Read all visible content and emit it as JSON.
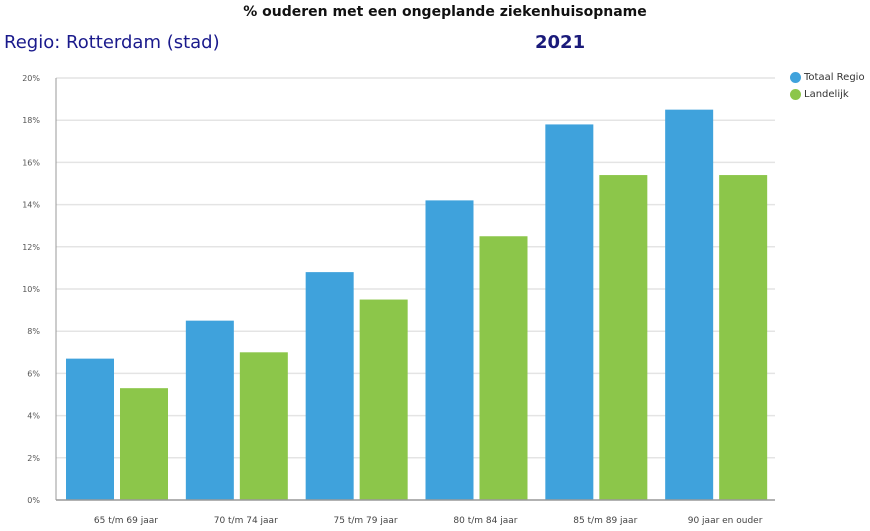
{
  "chart_data": {
    "type": "bar",
    "title": "% ouderen met een ongeplande ziekenhuisopname",
    "region_label": "Regio:  Rotterdam (stad)",
    "year": "2021",
    "categories": [
      "65 t/m 69 jaar",
      "70 t/m 74 jaar",
      "75 t/m 79 jaar",
      "80 t/m 84 jaar",
      "85 t/m 89 jaar",
      "90 jaar en ouder"
    ],
    "series": [
      {
        "name": "Totaal Regio",
        "color": "#3fa2dc",
        "values": [
          6.7,
          8.5,
          10.8,
          14.2,
          17.8,
          18.5
        ]
      },
      {
        "name": "Landelijk",
        "color": "#8cc64a",
        "values": [
          5.3,
          7.0,
          9.5,
          12.5,
          15.4,
          15.4
        ]
      }
    ],
    "yticks": [
      "0%",
      "2%",
      "4%",
      "6%",
      "8%",
      "10%",
      "12%",
      "14%",
      "16%",
      "18%",
      "20%"
    ],
    "ylim": [
      0,
      20
    ],
    "grid": true,
    "legend": "top-right"
  }
}
